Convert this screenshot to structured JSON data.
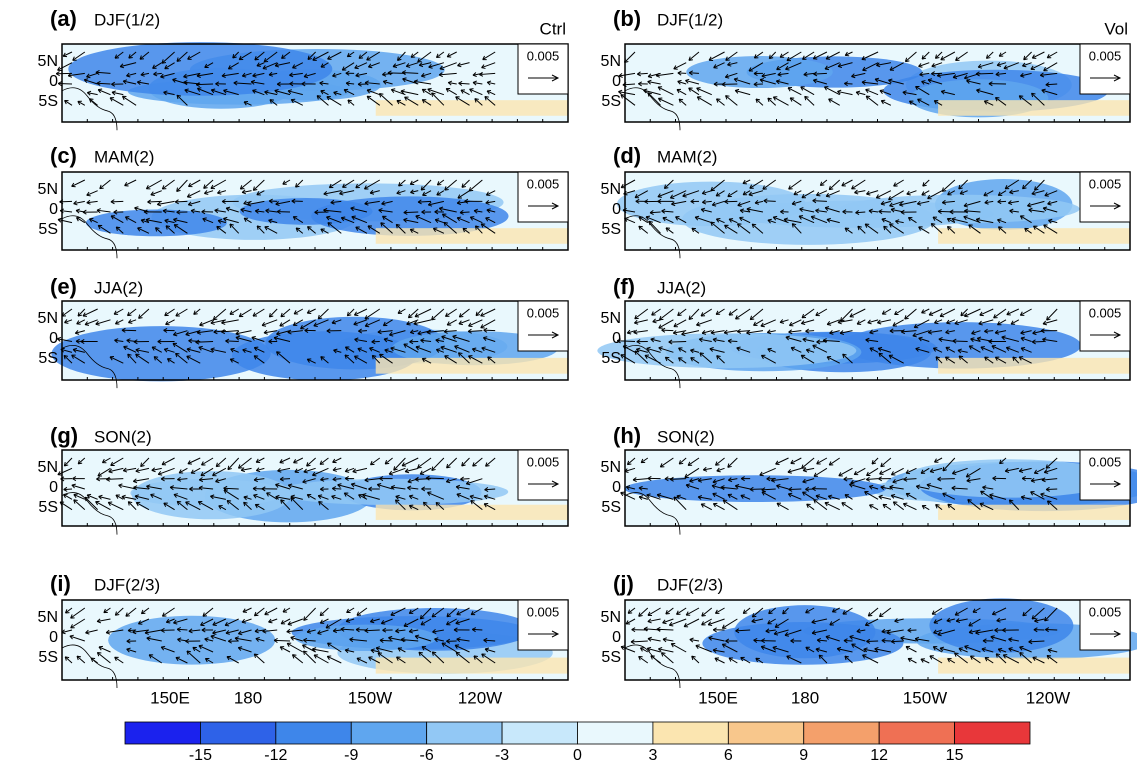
{
  "panels": [
    {
      "label": "(a)",
      "title": "DJF(1/2)",
      "run": "Ctrl",
      "ref_vector": "0.005"
    },
    {
      "label": "(b)",
      "title": "DJF(1/2)",
      "run": "Vol",
      "ref_vector": "0.005"
    },
    {
      "label": "(c)",
      "title": "MAM(2)",
      "ref_vector": "0.005"
    },
    {
      "label": "(d)",
      "title": "MAM(2)",
      "ref_vector": "0.005"
    },
    {
      "label": "(e)",
      "title": "JJA(2)",
      "ref_vector": "0.005"
    },
    {
      "label": "(f)",
      "title": "JJA(2)",
      "ref_vector": "0.005"
    },
    {
      "label": "(g)",
      "title": "SON(2)",
      "ref_vector": "0.005"
    },
    {
      "label": "(h)",
      "title": "SON(2)",
      "ref_vector": "0.005"
    },
    {
      "label": "(i)",
      "title": "DJF(2/3)",
      "ref_vector": "0.005"
    },
    {
      "label": "(j)",
      "title": "DJF(2/3)",
      "ref_vector": "0.005"
    }
  ],
  "lat_labels": [
    "5N",
    "0",
    "5S"
  ],
  "lon_labels": [
    "150E",
    "180",
    "150W",
    "120W"
  ],
  "colorbar": {
    "ticks": [
      -15,
      -12,
      -9,
      -6,
      -3,
      0,
      3,
      6,
      9,
      12,
      15
    ],
    "colors": [
      "#1b22ee",
      "#2e62e8",
      "#3e86ea",
      "#5fa6ef",
      "#92c8f5",
      "#c8e8fb",
      "#e9f8fd",
      "#fbe5b0",
      "#f8c78c",
      "#f4a06b",
      "#ef7054",
      "#e8373a"
    ]
  }
}
